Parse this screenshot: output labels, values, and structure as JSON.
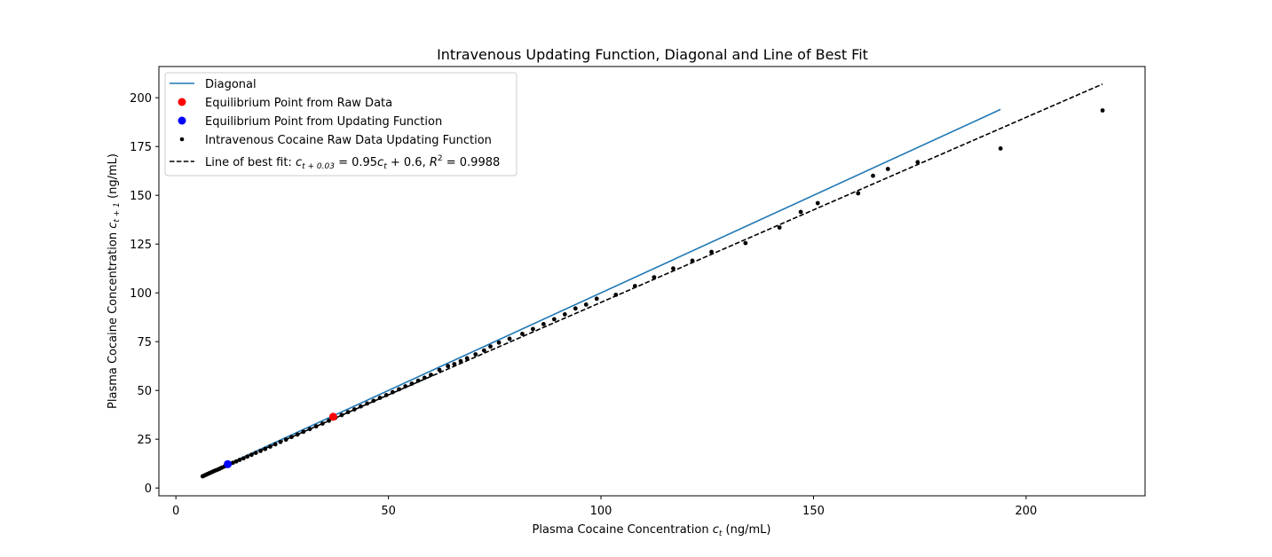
{
  "chart_data": {
    "type": "scatter",
    "title": "Intravenous Updating Function, Diagonal and Line of Best Fit",
    "xlabel": "Plasma Cocaine Concentration c_t (ng/mL)",
    "ylabel": "Plasma Cocaine Concentration c_{t+1} (ng/mL)",
    "xlabel_parts": {
      "pre": "Plasma Cocaine Concentration ",
      "var": "c",
      "sub": "t",
      "post": " (ng/mL)"
    },
    "ylabel_parts": {
      "pre": "Plasma Cocaine Concentration ",
      "var": "c",
      "sub": "t + 1",
      "post": " (ng/mL)"
    },
    "xlim": [
      -4,
      228
    ],
    "ylim": [
      -4,
      216
    ],
    "xticks": [
      0,
      50,
      100,
      150,
      200
    ],
    "yticks": [
      0,
      25,
      50,
      75,
      100,
      125,
      150,
      175,
      200
    ],
    "grid": false,
    "legend": {
      "position": "top-left",
      "entries": [
        {
          "key": "diagonal",
          "label": "Diagonal"
        },
        {
          "key": "eq_raw",
          "label": "Equilibrium Point from Raw Data"
        },
        {
          "key": "eq_upd",
          "label": "Equilibrium Point from Updating Function"
        },
        {
          "key": "raw",
          "label": "Intravenous Cocaine Raw Data Updating Function"
        },
        {
          "key": "fit",
          "label": "Line of best fit: c_{t+0.03} = 0.95c_t + 0.6, R^2 = 0.9988"
        }
      ],
      "fit_label_parts": {
        "pre": "Line of best fit: ",
        "eq": "c",
        "sub": "t + 0.03",
        "mid": " = 0.95",
        "eq2": "c",
        "sub2": "t",
        "post": " + 0.6, ",
        "r": "R",
        "sup": "2",
        "tail": " = 0.9988"
      }
    },
    "series": [
      {
        "name": "Diagonal",
        "kind": "line",
        "color": "#1f77b4",
        "x": [
          6,
          194
        ],
        "y": [
          6,
          194
        ]
      },
      {
        "name": "Line of best fit",
        "kind": "dashed-line",
        "color": "#000000",
        "x": [
          6,
          218
        ],
        "y": [
          6,
          207
        ]
      },
      {
        "name": "Intravenous Cocaine Raw Data Updating Function",
        "kind": "scatter",
        "color": "#000000",
        "x": [
          6.3,
          6.6,
          6.9,
          7.2,
          7.5,
          7.8,
          8.1,
          8.5,
          8.9,
          9.3,
          9.8,
          10.3,
          10.8,
          11.4,
          12,
          12.7,
          13.4,
          14.2,
          15,
          15.9,
          16.8,
          17.8,
          18.8,
          19.9,
          21,
          22.2,
          23.4,
          24.6,
          25.9,
          27.2,
          28.6,
          30,
          31.5,
          33,
          34.5,
          36,
          37.5,
          39,
          40.5,
          42,
          43.5,
          45,
          46.5,
          48,
          49.5,
          51,
          52.5,
          54,
          55.5,
          57,
          58.5,
          60,
          62,
          64,
          65.5,
          67,
          68.5,
          70.5,
          72.5,
          74,
          76,
          78.5,
          81.5,
          84,
          86.5,
          89,
          91.5,
          94,
          96.5,
          99,
          103.5,
          108,
          112.5,
          117,
          121.5,
          126,
          134,
          142,
          147,
          151,
          160.5,
          164,
          167.5,
          174.5,
          194,
          218
        ],
        "y": [
          6,
          6.3,
          6.6,
          6.9,
          7.2,
          7.5,
          7.8,
          8.2,
          8.6,
          9,
          9.4,
          9.9,
          10.4,
          11,
          11.6,
          12.2,
          12.9,
          13.6,
          14.4,
          15.2,
          16.1,
          17,
          18,
          19,
          20,
          21.2,
          22.4,
          23.6,
          24.8,
          26.1,
          27.4,
          28.8,
          30.2,
          31.6,
          33,
          34.5,
          36,
          37.4,
          38.9,
          40.3,
          41.8,
          43.3,
          44.7,
          46.2,
          47.6,
          49.1,
          50.6,
          52.1,
          53.5,
          55,
          56.5,
          58,
          60.5,
          62.5,
          63.5,
          65,
          66.5,
          68.5,
          70.5,
          72.5,
          74.5,
          76.5,
          79,
          81.5,
          84,
          86.5,
          89,
          92,
          94,
          97,
          99,
          103.5,
          108,
          112.5,
          116.5,
          121,
          125.5,
          133.5,
          141.5,
          146,
          151,
          160,
          163.5,
          167,
          174,
          193.5
        ]
      },
      {
        "name": "Equilibrium Point from Raw Data",
        "kind": "marker",
        "color": "#ff0000",
        "x": [
          37
        ],
        "y": [
          36.5
        ]
      },
      {
        "name": "Equilibrium Point from Updating Function",
        "kind": "marker",
        "color": "#0000ff",
        "x": [
          12.2
        ],
        "y": [
          12.2
        ]
      }
    ]
  }
}
